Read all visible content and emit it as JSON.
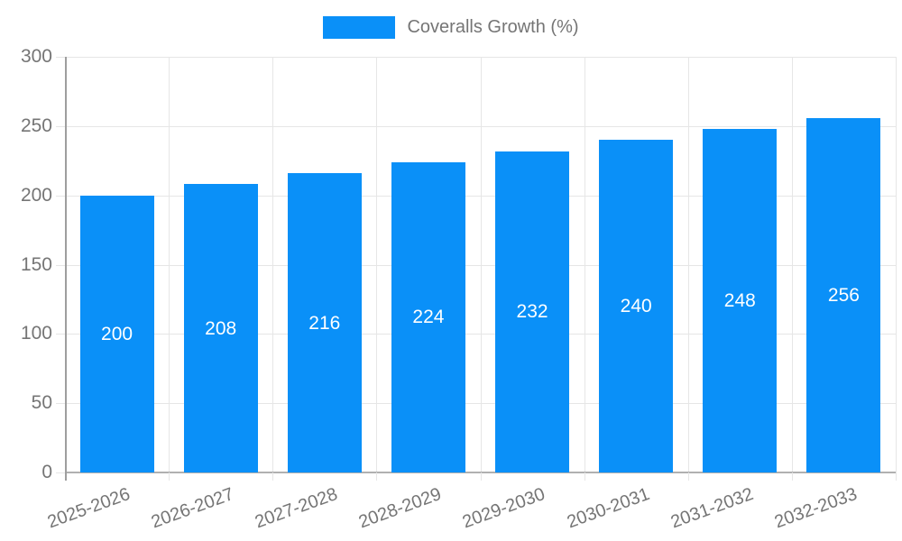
{
  "chart_data": {
    "type": "bar",
    "title": "",
    "legend_label": "Coveralls Growth (%)",
    "legend_position": "top",
    "categories": [
      "2025-2026",
      "2026-2027",
      "2027-2028",
      "2028-2029",
      "2029-2030",
      "2030-2031",
      "2031-2032",
      "2032-2033"
    ],
    "series": [
      {
        "name": "Coveralls Growth (%)",
        "values": [
          200,
          208,
          216,
          224,
          232,
          240,
          248,
          256
        ]
      }
    ],
    "value_labels": [
      "200",
      "208",
      "216",
      "224",
      "232",
      "240",
      "248",
      "256"
    ],
    "xlabel": "",
    "ylabel": "",
    "ylim": [
      0,
      300
    ],
    "yticks": [
      0,
      50,
      100,
      150,
      200,
      250,
      300
    ],
    "grid": true,
    "x_label_rotation_deg": -20,
    "colors": {
      "bar": "#0A90F8",
      "value_label": "#FFFFFF",
      "axis_text": "#757575",
      "gridline": "#E6E6E6",
      "axis_line": "#9E9E9E",
      "baseline": "#B0B0B0",
      "background": "#FFFFFF"
    }
  }
}
